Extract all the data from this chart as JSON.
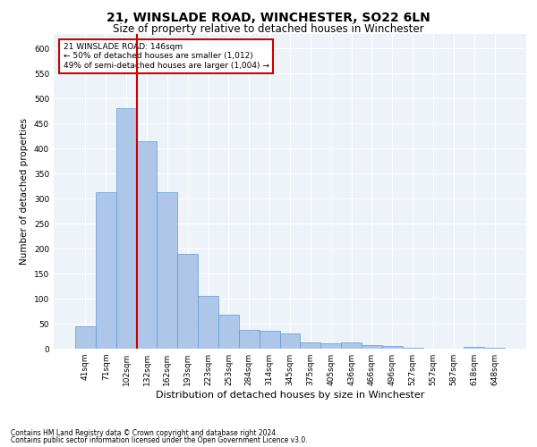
{
  "title": "21, WINSLADE ROAD, WINCHESTER, SO22 6LN",
  "subtitle": "Size of property relative to detached houses in Winchester",
  "xlabel": "Distribution of detached houses by size in Winchester",
  "ylabel": "Number of detached properties",
  "footnote1": "Contains HM Land Registry data © Crown copyright and database right 2024.",
  "footnote2": "Contains public sector information licensed under the Open Government Licence v3.0.",
  "annotation_title": "21 WINSLADE ROAD: 146sqm",
  "annotation_line1": "← 50% of detached houses are smaller (1,012)",
  "annotation_line2": "49% of semi-detached houses are larger (1,004) →",
  "bar_labels": [
    "41sqm",
    "71sqm",
    "102sqm",
    "132sqm",
    "162sqm",
    "193sqm",
    "223sqm",
    "253sqm",
    "284sqm",
    "314sqm",
    "345sqm",
    "375sqm",
    "405sqm",
    "436sqm",
    "466sqm",
    "496sqm",
    "527sqm",
    "557sqm",
    "587sqm",
    "618sqm",
    "648sqm"
  ],
  "bar_values": [
    45,
    312,
    480,
    415,
    312,
    190,
    105,
    68,
    38,
    35,
    30,
    12,
    10,
    13,
    7,
    5,
    2,
    0,
    0,
    3,
    1
  ],
  "bar_color": "#aec6e8",
  "bar_edge_color": "#5b9bd5",
  "vline_index": 3.0,
  "vline_color": "#cc0000",
  "annotation_box_color": "#cc0000",
  "ylim": [
    0,
    630
  ],
  "yticks": [
    0,
    50,
    100,
    150,
    200,
    250,
    300,
    350,
    400,
    450,
    500,
    550,
    600
  ],
  "bg_color": "#eef2f9",
  "grid_color": "#ffffff",
  "title_fontsize": 10,
  "subtitle_fontsize": 8.5,
  "tick_fontsize": 6.5,
  "ylabel_fontsize": 7.5,
  "xlabel_fontsize": 8,
  "annot_fontsize": 6.5,
  "footnote_fontsize": 5.5
}
